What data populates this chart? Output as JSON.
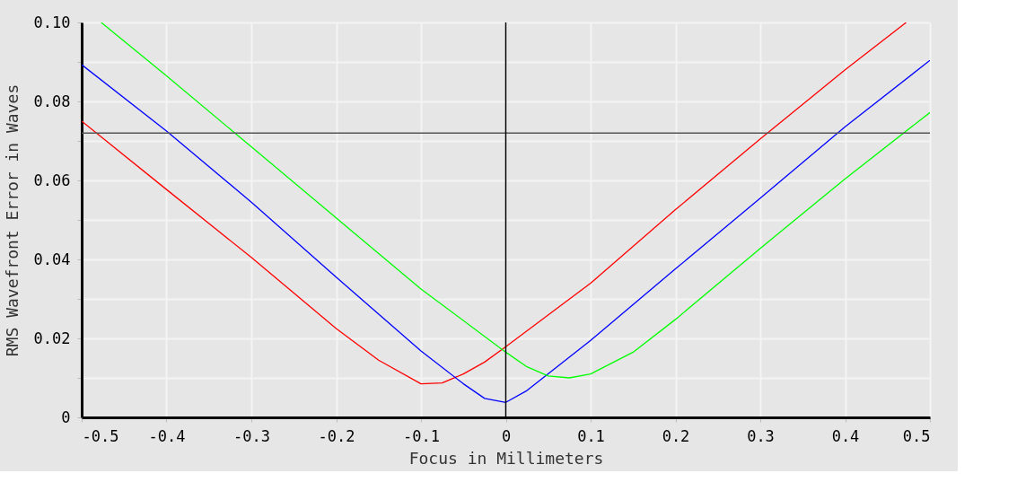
{
  "chart_data": {
    "type": "line",
    "xlabel": "Focus in Millimeters",
    "ylabel": "RMS Wavefront Error in Waves",
    "xlim": [
      -0.5,
      0.5
    ],
    "ylim": [
      0,
      0.1
    ],
    "xticks": [
      -0.5,
      -0.4,
      -0.3,
      -0.2,
      -0.1,
      0,
      0.1,
      0.2,
      0.3,
      0.4,
      0.5
    ],
    "yticks": [
      0,
      {
        "value": 0.01,
        "label": null
      },
      {
        "value": 0.02,
        "label": "0.02"
      },
      {
        "value": 0.03,
        "label": null
      },
      {
        "value": 0.04,
        "label": "0.04"
      },
      {
        "value": 0.05,
        "label": null
      },
      {
        "value": 0.06,
        "label": "0.06"
      },
      {
        "value": 0.07,
        "label": null
      },
      {
        "value": 0.08,
        "label": "0.08"
      },
      {
        "value": 0.09,
        "label": null
      },
      {
        "value": 0.1,
        "label": "0.10"
      }
    ],
    "grid": true,
    "marker": "none",
    "line_style": "solid",
    "ref_lines": [
      {
        "axis": "y",
        "value": 0.072,
        "color": "#555555"
      },
      {
        "axis": "x",
        "value": 0,
        "color": "#000000"
      }
    ],
    "series": [
      {
        "color": "#ff0000",
        "x": [
          -0.5,
          -0.4,
          -0.3,
          -0.2,
          -0.15,
          -0.1,
          -0.075,
          -0.05,
          -0.025,
          0,
          0.1,
          0.2,
          0.3,
          0.4,
          0.472
        ],
        "values": [
          0.075,
          0.0577,
          0.0405,
          0.0225,
          0.0145,
          0.0085,
          0.0087,
          0.011,
          0.014,
          0.0179,
          0.034,
          0.0526,
          0.0705,
          0.088,
          0.1
        ]
      },
      {
        "color": "#0000ff",
        "x": [
          -0.5,
          -0.4,
          -0.3,
          -0.2,
          -0.1,
          -0.05,
          -0.025,
          0,
          0.025,
          0.1,
          0.2,
          0.3,
          0.4,
          0.5
        ],
        "values": [
          0.0893,
          0.0725,
          0.0545,
          0.0355,
          0.0168,
          0.0085,
          0.0048,
          0.0038,
          0.0068,
          0.0195,
          0.0376,
          0.0555,
          0.0736,
          0.0904
        ]
      },
      {
        "color": "#00ff00",
        "x": [
          -0.477,
          -0.4,
          -0.3,
          -0.2,
          -0.1,
          0,
          0.025,
          0.05,
          0.075,
          0.1,
          0.15,
          0.2,
          0.3,
          0.4,
          0.5
        ],
        "values": [
          0.1,
          0.0865,
          0.0685,
          0.0505,
          0.0325,
          0.0165,
          0.0128,
          0.0105,
          0.01,
          0.011,
          0.0165,
          0.0248,
          0.0428,
          0.0604,
          0.0772
        ]
      }
    ]
  }
}
